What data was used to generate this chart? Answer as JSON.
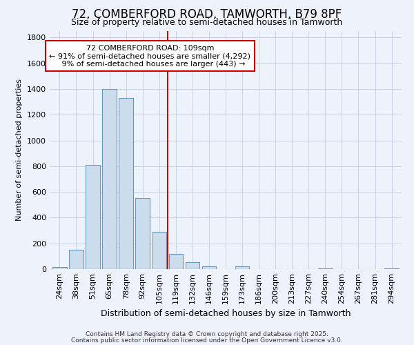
{
  "title1": "72, COMBERFORD ROAD, TAMWORTH, B79 8PF",
  "title2": "Size of property relative to semi-detached houses in Tamworth",
  "xlabel": "Distribution of semi-detached houses by size in Tamworth",
  "ylabel": "Number of semi-detached properties",
  "categories": [
    "24sqm",
    "38sqm",
    "51sqm",
    "65sqm",
    "78sqm",
    "92sqm",
    "105sqm",
    "119sqm",
    "132sqm",
    "146sqm",
    "159sqm",
    "173sqm",
    "186sqm",
    "200sqm",
    "213sqm",
    "227sqm",
    "240sqm",
    "254sqm",
    "267sqm",
    "281sqm",
    "294sqm"
  ],
  "values": [
    15,
    150,
    810,
    1400,
    1330,
    550,
    290,
    120,
    55,
    20,
    0,
    20,
    0,
    0,
    0,
    0,
    5,
    0,
    0,
    0,
    8
  ],
  "bar_color": "#ccdded",
  "bar_edge_color": "#6699bb",
  "vline_x": 6.5,
  "vline_color": "#cc0000",
  "annotation_text": "72 COMBERFORD ROAD: 109sqm\n← 91% of semi-detached houses are smaller (4,292)\n   9% of semi-detached houses are larger (443) →",
  "annotation_box_color": "#ffffff",
  "annotation_edge_color": "#cc0000",
  "ylim": [
    0,
    1850
  ],
  "yticks": [
    0,
    200,
    400,
    600,
    800,
    1000,
    1200,
    1400,
    1600,
    1800
  ],
  "footnote1": "Contains HM Land Registry data © Crown copyright and database right 2025.",
  "footnote2": "Contains public sector information licensed under the Open Government Licence v3.0.",
  "bg_color": "#eef2fb",
  "grid_color": "#c8d0e8",
  "title1_fontsize": 12,
  "title2_fontsize": 9,
  "xlabel_fontsize": 9,
  "ylabel_fontsize": 8,
  "tick_fontsize": 8,
  "annot_fontsize": 8,
  "footnote_fontsize": 6.5
}
